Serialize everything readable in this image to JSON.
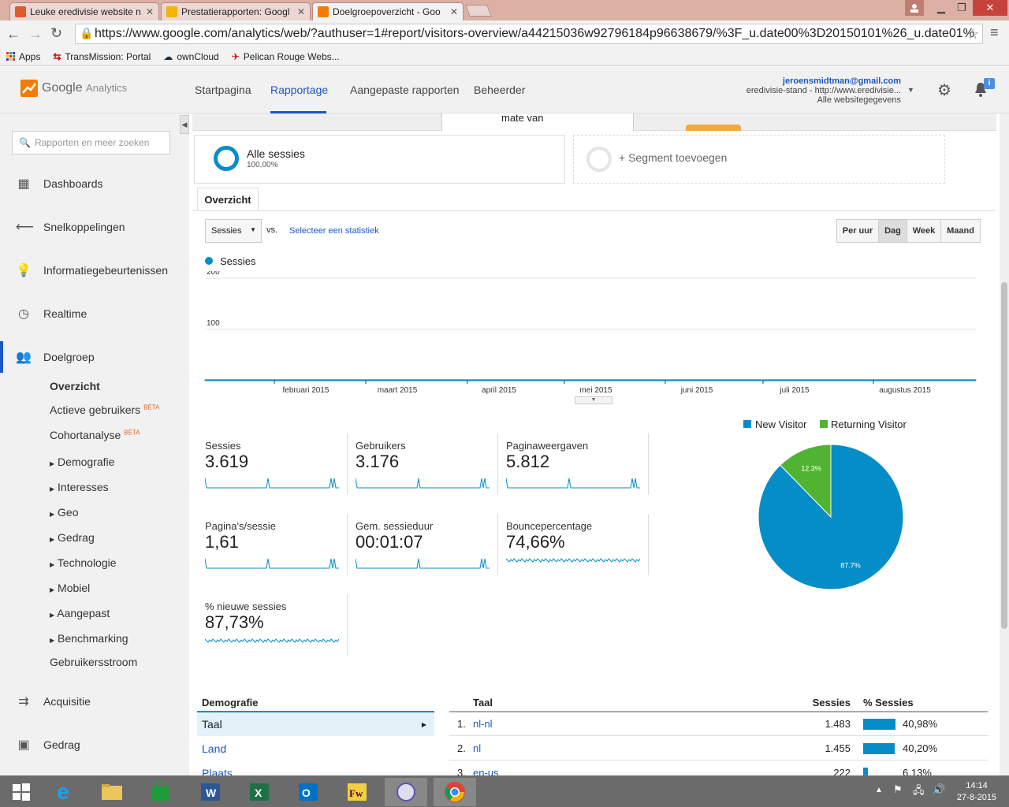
{
  "browser": {
    "tabs": [
      {
        "title": "Leuke eredivisie website n",
        "active": false
      },
      {
        "title": "Prestatierapporten: Googl",
        "active": false
      },
      {
        "title": "Doelgroepoverzicht - Goo",
        "active": true
      }
    ],
    "url": "https://www.google.com/analytics/web/?authuser=1#report/visitors-overview/a44215036w92796184p96638679/%3F_u.date00%3D20150101%26_u.date01%",
    "bookmarks": [
      "Apps",
      "TransMission: Portal",
      "ownCloud",
      "Pelican Rouge Webs..."
    ]
  },
  "ga": {
    "logo_google": "Google",
    "logo_analytics": "Analytics",
    "nav": [
      "Startpagina",
      "Rapportage",
      "Aangepaste rapporten",
      "Beheerder"
    ],
    "active_nav": "Rapportage",
    "account_email": "jeroensmidtman@gmail.com",
    "account_property": "eredivisie-stand - http://www.eredivisie...",
    "account_view": "Alle websitegegevens",
    "notification_badge": "i"
  },
  "sidebar": {
    "search_placeholder": "Rapporten en meer zoeken",
    "items": [
      "Dashboards",
      "Snelkoppelingen",
      "Informatiegebeurtenissen",
      "Realtime",
      "Doelgroep"
    ],
    "sub_items": [
      "Overzicht",
      "Actieve gebruikers",
      "Cohortanalyse"
    ],
    "beta": "BÈTA",
    "expandable": [
      "Demografie",
      "Interesses",
      "Geo",
      "Gedrag",
      "Technologie",
      "Mobiel",
      "Aangepast",
      "Benchmarking"
    ],
    "flow": "Gebruikersstroom",
    "bottom": [
      "Acquisitie",
      "Gedrag"
    ]
  },
  "main": {
    "partial_text": "mate van",
    "segment_name": "Alle sessies",
    "segment_pct": "100,00%",
    "add_segment": "+ Segment toevoegen",
    "tab": "Overzicht",
    "metric_select": "Sessies",
    "vs": "vs.",
    "select_stat": "Selecteer een statistiek",
    "granularity": [
      "Per uur",
      "Dag",
      "Week",
      "Maand"
    ],
    "active_granularity": "Dag",
    "legend": "Sessies"
  },
  "chart_data": [
    {
      "type": "line",
      "title": "",
      "series": [
        {
          "name": "Sessies",
          "values": [
            1,
            1,
            1,
            1,
            1,
            1,
            1,
            1,
            1,
            1,
            1,
            1,
            1,
            1,
            1,
            1,
            1,
            1,
            1,
            1,
            1,
            1,
            1,
            1,
            1,
            1,
            1,
            1,
            1,
            1,
            1,
            1,
            1,
            1,
            1,
            1,
            1,
            1,
            1,
            1,
            1,
            1,
            1,
            1,
            1,
            1,
            1,
            1,
            1,
            1,
            1,
            1,
            1,
            1,
            1,
            1,
            1,
            1,
            1,
            1,
            1,
            1,
            1,
            1,
            1,
            1,
            1,
            1,
            1,
            1,
            1,
            1,
            1,
            1,
            1,
            1,
            1,
            1,
            1,
            1,
            1,
            1,
            1,
            1,
            1,
            1,
            1,
            1,
            1,
            1,
            1,
            1,
            1,
            1,
            1,
            1,
            1,
            1,
            1,
            1
          ]
        }
      ],
      "x_labels": [
        "februari 2015",
        "maart 2015",
        "april 2015",
        "mei 2015",
        "juni 2015",
        "juli 2015",
        "augustus 2015"
      ],
      "y_ticks": [
        100,
        200
      ],
      "ylim": [
        0,
        200
      ]
    },
    {
      "type": "pie",
      "legend": [
        "New Visitor",
        "Returning Visitor"
      ],
      "values": [
        87.7,
        12.3
      ],
      "labels": [
        "87.7%",
        "12.3%"
      ],
      "colors": [
        "#058dc7",
        "#50b432"
      ]
    }
  ],
  "metrics": [
    {
      "label": "Sessies",
      "value": "3.619"
    },
    {
      "label": "Gebruikers",
      "value": "3.176"
    },
    {
      "label": "Paginaweergaven",
      "value": "5.812"
    },
    {
      "label": "Pagina's/sessie",
      "value": "1,61"
    },
    {
      "label": "Gem. sessieduur",
      "value": "00:01:07"
    },
    {
      "label": "Bouncepercentage",
      "value": "74,66%"
    },
    {
      "label": "% nieuwe sessies",
      "value": "87,73%"
    }
  ],
  "demografie": {
    "header": "Demografie",
    "items": [
      "Taal",
      "Land",
      "Plaats"
    ],
    "table_headers": [
      "Taal",
      "Sessies",
      "% Sessies"
    ],
    "rows": [
      {
        "rank": "1.",
        "name": "nl-nl",
        "sessions": "1.483",
        "pct": "40,98%",
        "pct_value": 40.98
      },
      {
        "rank": "2.",
        "name": "nl",
        "sessions": "1.455",
        "pct": "40,20%",
        "pct_value": 40.2
      },
      {
        "rank": "3.",
        "name": "en-us",
        "sessions": "222",
        "pct": "6,13%",
        "pct_value": 6.13
      }
    ]
  },
  "taskbar": {
    "time": "14:14",
    "date": "27-8-2015"
  },
  "colors": {
    "accent": "#058dc7",
    "green": "#50b432",
    "active_nav": "#1a57c4"
  }
}
